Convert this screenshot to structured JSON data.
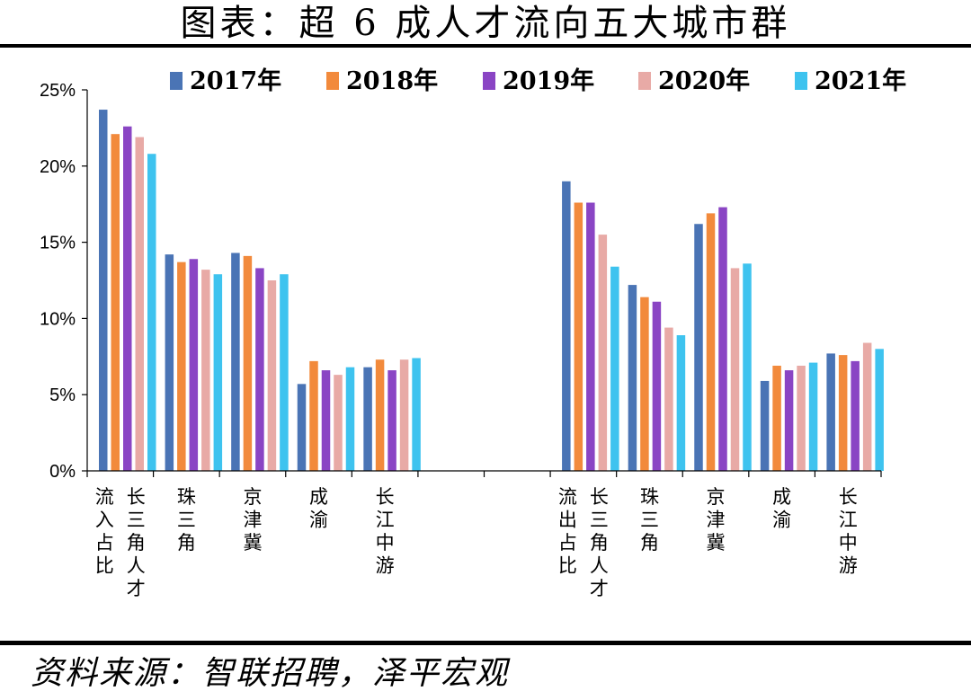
{
  "title": "图表：超 6 成人才流向五大城市群",
  "source": "资料来源：智联招聘，泽平宏观",
  "colors": {
    "2017年": "#4a74b5",
    "2018年": "#f28a3c",
    "2019年": "#8a45c4",
    "2020年": "#e8aaa6",
    "2021年": "#3ec3ef"
  },
  "chart_data": {
    "type": "bar",
    "title": "图表：超 6 成人才流向五大城市群",
    "xlabel": "",
    "ylabel": "",
    "ylim": [
      0,
      25
    ],
    "yticks": [
      "0%",
      "5%",
      "10%",
      "15%",
      "20%",
      "25%"
    ],
    "legend_position": "top",
    "grid": false,
    "groups": [
      {
        "label": [
          "流入占比",
          "长三角人才"
        ],
        "categories": [
          [
            "长三角人才"
          ],
          [
            "珠三角"
          ],
          [
            "京津冀"
          ],
          [
            "成渝"
          ],
          [
            "长江中游"
          ]
        ]
      },
      {
        "label": [
          "流出占比",
          "长三角人才"
        ],
        "categories": [
          [
            "长三角人才"
          ],
          [
            "珠三角"
          ],
          [
            "京津冀"
          ],
          [
            "成渝"
          ],
          [
            "长江中游"
          ]
        ]
      }
    ],
    "categories": [
      "流入占比 长三角人才",
      "珠三角",
      "京津冀",
      "成渝",
      "长江中游",
      "",
      "",
      "流出占比 长三角人才",
      "珠三角",
      "京津冀",
      "成渝",
      "长江中游"
    ],
    "category_lines": [
      [
        [
          "长",
          "三",
          "角",
          "人",
          "才"
        ],
        [
          "流",
          "入",
          "占",
          "比"
        ]
      ],
      [
        [
          "珠",
          "三",
          "角"
        ]
      ],
      [
        [
          "京",
          "津",
          "冀"
        ]
      ],
      [
        [
          "成",
          "渝"
        ]
      ],
      [
        [
          "长",
          "江",
          "中",
          "游"
        ]
      ],
      [],
      [],
      [
        [
          "长",
          "三",
          "角",
          "人",
          "才"
        ],
        [
          "流",
          "出",
          "占",
          "比"
        ]
      ],
      [
        [
          "珠",
          "三",
          "角"
        ]
      ],
      [
        [
          "京",
          "津",
          "冀"
        ]
      ],
      [
        [
          "成",
          "渝"
        ]
      ],
      [
        [
          "长",
          "江",
          "中",
          "游"
        ]
      ]
    ],
    "series": [
      {
        "name": "2017年",
        "values": [
          23.7,
          14.2,
          14.3,
          5.7,
          6.8,
          null,
          null,
          19.0,
          12.2,
          16.2,
          5.9,
          7.7
        ]
      },
      {
        "name": "2018年",
        "values": [
          22.1,
          13.7,
          14.1,
          7.2,
          7.3,
          null,
          null,
          17.6,
          11.4,
          16.9,
          6.9,
          7.6
        ]
      },
      {
        "name": "2019年",
        "values": [
          22.6,
          13.9,
          13.3,
          6.6,
          6.6,
          null,
          null,
          17.6,
          11.1,
          17.3,
          6.6,
          7.2
        ]
      },
      {
        "name": "2020年",
        "values": [
          21.9,
          13.2,
          12.5,
          6.3,
          7.3,
          null,
          null,
          15.5,
          9.4,
          13.3,
          6.9,
          8.4
        ]
      },
      {
        "name": "2021年",
        "values": [
          20.8,
          12.9,
          12.9,
          6.8,
          7.4,
          null,
          null,
          13.4,
          8.9,
          13.6,
          7.1,
          8.0
        ]
      }
    ]
  }
}
